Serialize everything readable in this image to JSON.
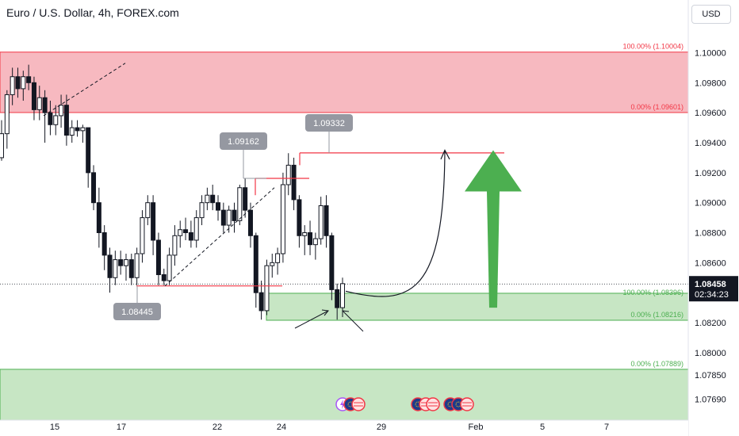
{
  "header": {
    "title": "Euro / U.S. Dollar, 4h, FOREX.com",
    "currency": "USD"
  },
  "price_box": {
    "price": "1.08458",
    "countdown": "02:34:23"
  },
  "fib_labels": {
    "top_100": "100.00% (1.10004)",
    "top_0": "0.00% (1.09601)",
    "mid_100": "100.00% (1.08396)",
    "mid_0": "0.00% (1.08216)",
    "low_0": "0.00% (1.07889)"
  },
  "callouts": {
    "c1": "1.09162",
    "c2": "1.09332",
    "c3": "1.08445"
  },
  "colors": {
    "bull": "#ffffff",
    "bear": "#131722",
    "red_zone": "#f7b9c0",
    "green_zone": "#c7e6c4",
    "arrow": "#4caf50",
    "line_red": "#f23645"
  },
  "icons": [
    "calendar-event-icon",
    "eu-flag-icon",
    "us-flag-icon"
  ],
  "chart_data": {
    "type": "candlestick",
    "title": "Euro / U.S. Dollar, 4h, FOREX.com",
    "y_ticks": [
      "1.10000",
      "1.09800",
      "1.09600",
      "1.09400",
      "1.09200",
      "1.09000",
      "1.08800",
      "1.08600",
      "1.08400",
      "1.08200",
      "1.08000",
      "1.07850",
      "1.07690"
    ],
    "x_ticks": [
      "15",
      "17",
      "22",
      "24",
      "29",
      "Feb",
      "5",
      "7"
    ],
    "ylim": [
      1.0755,
      1.1014
    ],
    "grid": false,
    "candles": [
      {
        "o": 1.093,
        "h": 1.0955,
        "l": 1.0928,
        "c": 1.0946
      },
      {
        "o": 1.0946,
        "h": 1.0975,
        "l": 1.0936,
        "c": 1.0972
      },
      {
        "o": 1.0972,
        "h": 1.099,
        "l": 1.0965,
        "c": 1.0984
      },
      {
        "o": 1.0984,
        "h": 1.099,
        "l": 1.097,
        "c": 1.0976
      },
      {
        "o": 1.0976,
        "h": 1.0988,
        "l": 1.0968,
        "c": 1.0984
      },
      {
        "o": 1.0984,
        "h": 1.0992,
        "l": 1.0975,
        "c": 1.098
      },
      {
        "o": 1.098,
        "h": 1.0984,
        "l": 1.0955,
        "c": 1.0962
      },
      {
        "o": 1.0962,
        "h": 1.0978,
        "l": 1.0955,
        "c": 1.097
      },
      {
        "o": 1.097,
        "h": 1.0975,
        "l": 1.094,
        "c": 1.096
      },
      {
        "o": 1.096,
        "h": 1.0968,
        "l": 1.0945,
        "c": 1.0952
      },
      {
        "o": 1.0952,
        "h": 1.0965,
        "l": 1.0945,
        "c": 1.0958
      },
      {
        "o": 1.0958,
        "h": 1.0972,
        "l": 1.095,
        "c": 1.0965
      },
      {
        "o": 1.0965,
        "h": 1.0972,
        "l": 1.0938,
        "c": 1.0945
      },
      {
        "o": 1.0945,
        "h": 1.0955,
        "l": 1.094,
        "c": 1.095
      },
      {
        "o": 1.095,
        "h": 1.0955,
        "l": 1.0944,
        "c": 1.0948
      },
      {
        "o": 1.0948,
        "h": 1.0952,
        "l": 1.094,
        "c": 1.095
      },
      {
        "o": 1.095,
        "h": 1.095,
        "l": 1.091,
        "c": 1.092
      },
      {
        "o": 1.092,
        "h": 1.0925,
        "l": 1.0895,
        "c": 1.09
      },
      {
        "o": 1.09,
        "h": 1.091,
        "l": 1.087,
        "c": 1.088
      },
      {
        "o": 1.088,
        "h": 1.0885,
        "l": 1.0855,
        "c": 1.0865
      },
      {
        "o": 1.0865,
        "h": 1.087,
        "l": 1.084,
        "c": 1.085
      },
      {
        "o": 1.085,
        "h": 1.0868,
        "l": 1.0845,
        "c": 1.0862
      },
      {
        "o": 1.0862,
        "h": 1.0868,
        "l": 1.0852,
        "c": 1.0858
      },
      {
        "o": 1.0858,
        "h": 1.0866,
        "l": 1.0848,
        "c": 1.0862
      },
      {
        "o": 1.0862,
        "h": 1.0866,
        "l": 1.0845,
        "c": 1.085
      },
      {
        "o": 1.085,
        "h": 1.087,
        "l": 1.0845,
        "c": 1.0866
      },
      {
        "o": 1.0866,
        "h": 1.0895,
        "l": 1.086,
        "c": 1.089
      },
      {
        "o": 1.089,
        "h": 1.0905,
        "l": 1.0885,
        "c": 1.09
      },
      {
        "o": 1.09,
        "h": 1.0905,
        "l": 1.0865,
        "c": 1.0875
      },
      {
        "o": 1.0875,
        "h": 1.088,
        "l": 1.0845,
        "c": 1.0852
      },
      {
        "o": 1.0852,
        "h": 1.0856,
        "l": 1.0845,
        "c": 1.0848
      },
      {
        "o": 1.0848,
        "h": 1.087,
        "l": 1.0845,
        "c": 1.0865
      },
      {
        "o": 1.0865,
        "h": 1.0885,
        "l": 1.0858,
        "c": 1.0878
      },
      {
        "o": 1.0878,
        "h": 1.0888,
        "l": 1.087,
        "c": 1.0882
      },
      {
        "o": 1.0882,
        "h": 1.089,
        "l": 1.0875,
        "c": 1.088
      },
      {
        "o": 1.088,
        "h": 1.0888,
        "l": 1.087,
        "c": 1.0875
      },
      {
        "o": 1.0875,
        "h": 1.0895,
        "l": 1.087,
        "c": 1.089
      },
      {
        "o": 1.089,
        "h": 1.0905,
        "l": 1.0885,
        "c": 1.09
      },
      {
        "o": 1.09,
        "h": 1.091,
        "l": 1.0895,
        "c": 1.0905
      },
      {
        "o": 1.0905,
        "h": 1.0912,
        "l": 1.0895,
        "c": 1.09
      },
      {
        "o": 1.09,
        "h": 1.0905,
        "l": 1.0888,
        "c": 1.0895
      },
      {
        "o": 1.0895,
        "h": 1.09,
        "l": 1.088,
        "c": 1.0885
      },
      {
        "o": 1.0885,
        "h": 1.0898,
        "l": 1.088,
        "c": 1.0895
      },
      {
        "o": 1.0895,
        "h": 1.09,
        "l": 1.088,
        "c": 1.0888
      },
      {
        "o": 1.0888,
        "h": 1.0912,
        "l": 1.0885,
        "c": 1.091
      },
      {
        "o": 1.091,
        "h": 1.0916,
        "l": 1.089,
        "c": 1.0895
      },
      {
        "o": 1.0895,
        "h": 1.09,
        "l": 1.087,
        "c": 1.0878
      },
      {
        "o": 1.0878,
        "h": 1.088,
        "l": 1.083,
        "c": 1.084
      },
      {
        "o": 1.084,
        "h": 1.0848,
        "l": 1.0822,
        "c": 1.0828
      },
      {
        "o": 1.0828,
        "h": 1.0862,
        "l": 1.0825,
        "c": 1.0858
      },
      {
        "o": 1.0858,
        "h": 1.0866,
        "l": 1.085,
        "c": 1.086
      },
      {
        "o": 1.086,
        "h": 1.087,
        "l": 1.0852,
        "c": 1.0866
      },
      {
        "o": 1.0866,
        "h": 1.092,
        "l": 1.086,
        "c": 1.0912
      },
      {
        "o": 1.0912,
        "h": 1.0933,
        "l": 1.0905,
        "c": 1.0925
      },
      {
        "o": 1.0925,
        "h": 1.093,
        "l": 1.0895,
        "c": 1.0902
      },
      {
        "o": 1.0902,
        "h": 1.0905,
        "l": 1.087,
        "c": 1.0878
      },
      {
        "o": 1.0878,
        "h": 1.0885,
        "l": 1.0865,
        "c": 1.088
      },
      {
        "o": 1.088,
        "h": 1.0888,
        "l": 1.0865,
        "c": 1.0872
      },
      {
        "o": 1.0872,
        "h": 1.088,
        "l": 1.0862,
        "c": 1.0876
      },
      {
        "o": 1.0876,
        "h": 1.0904,
        "l": 1.0872,
        "c": 1.0898
      },
      {
        "o": 1.0898,
        "h": 1.0905,
        "l": 1.087,
        "c": 1.0878
      },
      {
        "o": 1.0878,
        "h": 1.088,
        "l": 1.0835,
        "c": 1.0842
      },
      {
        "o": 1.0842,
        "h": 1.0846,
        "l": 1.0822,
        "c": 1.083
      },
      {
        "o": 1.083,
        "h": 1.085,
        "l": 1.0824,
        "c": 1.0846
      }
    ],
    "zones": [
      {
        "name": "red-zone",
        "from": 1.09601,
        "to": 1.10004
      },
      {
        "name": "green-zone",
        "from": 1.08216,
        "to": 1.08396
      },
      {
        "name": "low-green-zone",
        "from": 1.0755,
        "to": 1.07889
      }
    ]
  }
}
